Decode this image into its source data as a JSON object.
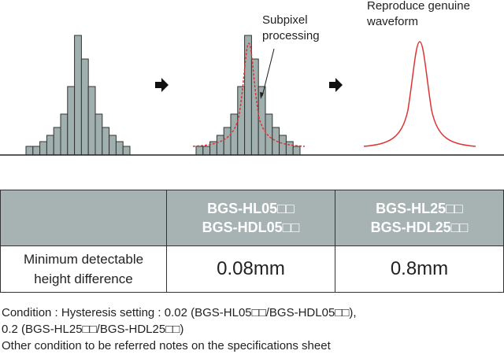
{
  "diagram": {
    "annotations": {
      "subpixel": [
        "Subpixel",
        "processing"
      ],
      "reproduce": [
        "Reproduce genuine",
        "waveform"
      ]
    }
  },
  "table": {
    "header": [
      [
        "BGS-HL05□□",
        "BGS-HDL05□□"
      ],
      [
        "BGS-HL25□□",
        "BGS-HDL25□□"
      ]
    ],
    "rows": [
      [
        [
          "Minimum detectable",
          "height difference"
        ],
        "0.08mm",
        "0.8mm"
      ]
    ]
  },
  "notes": [
    "Condition : Hysteresis setting : 0.02 (BGS-HL05□□/BGS-HDL05□□),",
    "0.2 (BGS-HL25□□/BGS-HDL25□□)",
    "Other condition to be referred notes on the specifications sheet"
  ]
}
